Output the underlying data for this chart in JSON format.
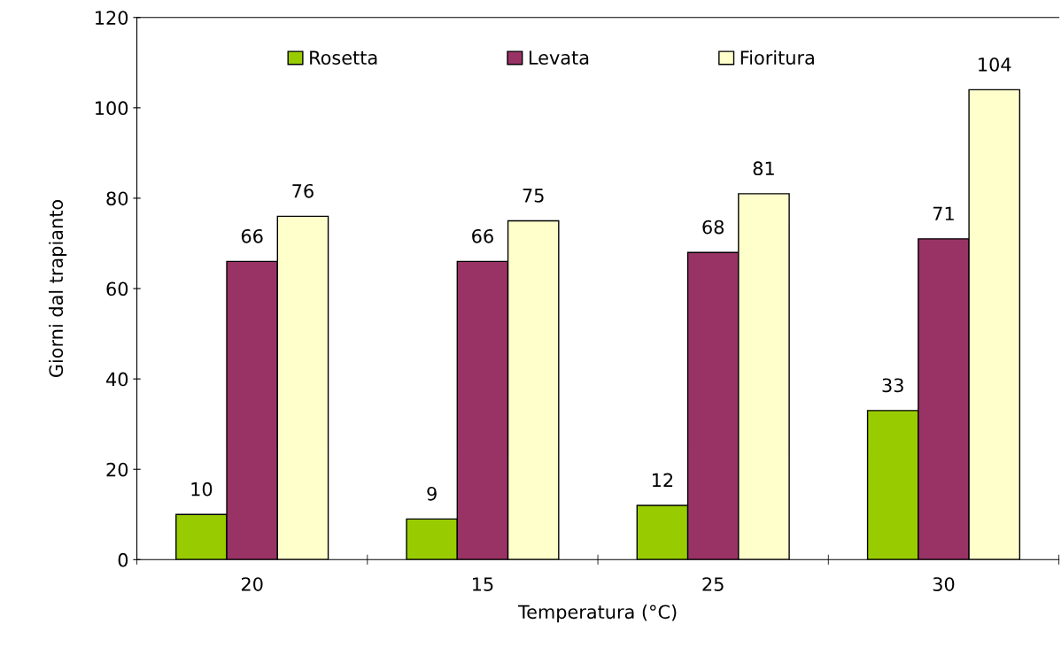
{
  "chart_data": {
    "type": "bar",
    "xlabel": "Temperatura (°C)",
    "ylabel": "Giorni dal trapianto",
    "categories": [
      "20",
      "15",
      "25",
      "30"
    ],
    "series": [
      {
        "name": "Rosetta",
        "color": "#99cc00",
        "values": [
          10,
          9,
          12,
          33
        ]
      },
      {
        "name": "Levata",
        "color": "#993366",
        "values": [
          66,
          66,
          68,
          71
        ]
      },
      {
        "name": "Fioritura",
        "color": "#ffffcc",
        "values": [
          76,
          75,
          81,
          104
        ]
      }
    ],
    "ylim": [
      0,
      120
    ],
    "yticks": [
      0,
      20,
      40,
      60,
      80,
      100,
      120
    ],
    "data_labels": true,
    "grid": false,
    "legend": "top"
  }
}
